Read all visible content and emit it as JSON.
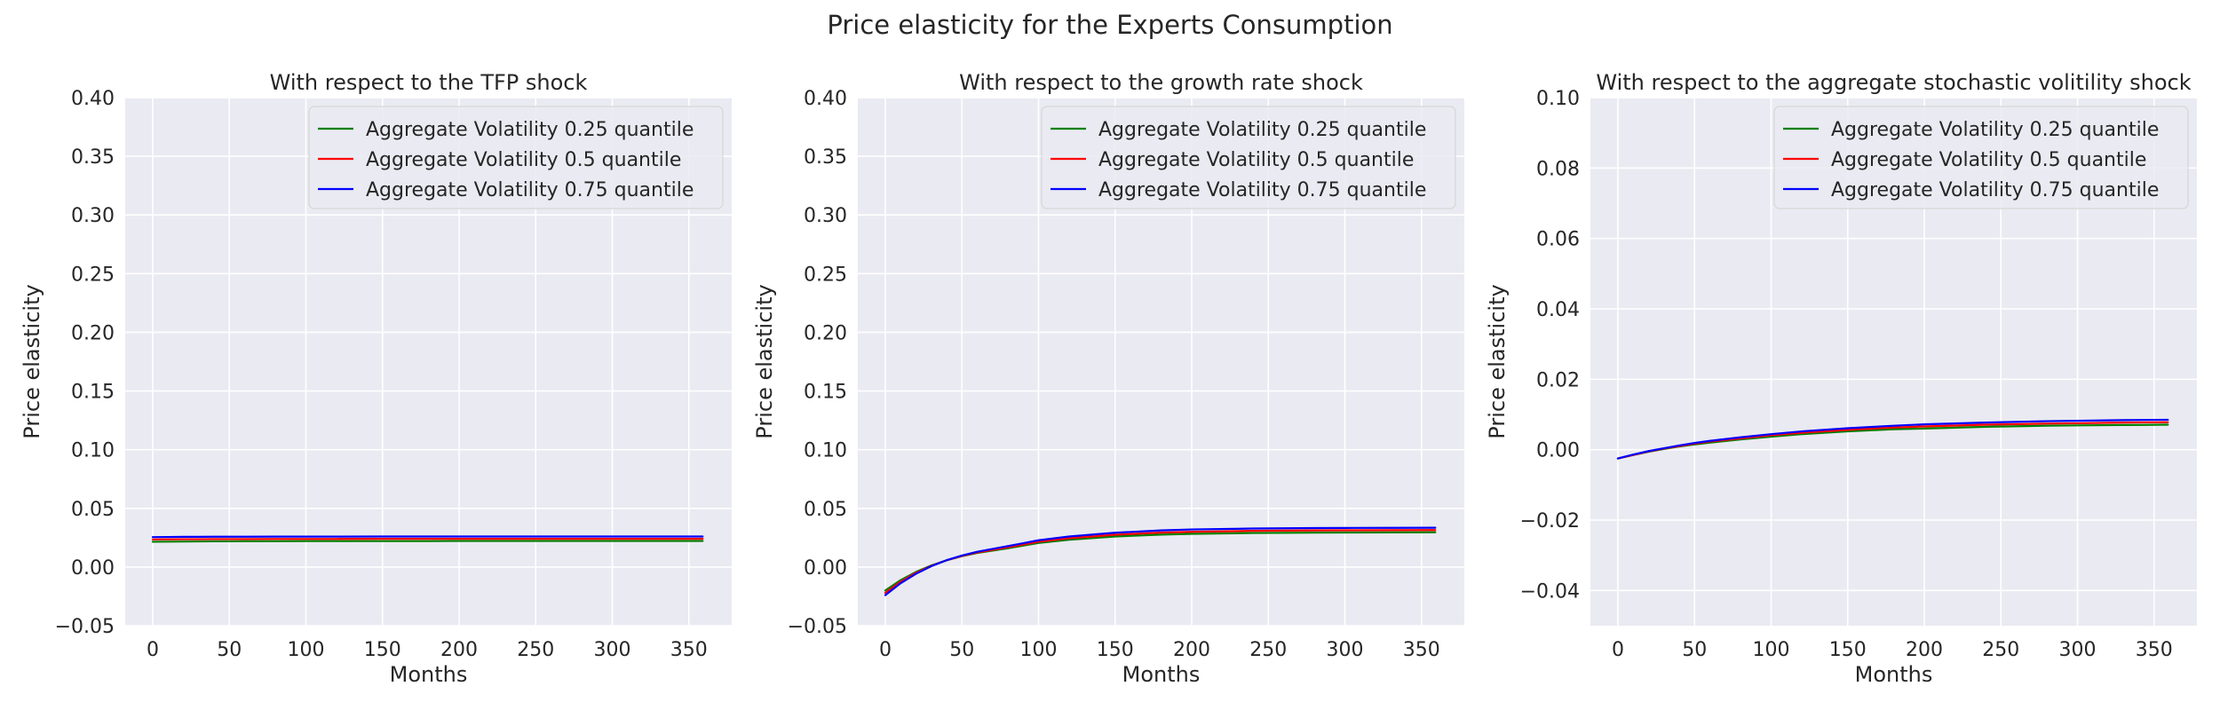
{
  "figure": {
    "suptitle": "Price elasticity for the Experts Consumption"
  },
  "chart_data": [
    {
      "type": "line",
      "title": "With respect to the TFP shock",
      "xlabel": "Months",
      "ylabel": "Price elasticity",
      "xlim": [
        -17.95,
        377.95
      ],
      "ylim": [
        -0.05,
        0.4
      ],
      "xticks": [
        0,
        50,
        100,
        150,
        200,
        250,
        300,
        350
      ],
      "xtick_labels": [
        "0",
        "50",
        "100",
        "150",
        "200",
        "250",
        "300",
        "350"
      ],
      "yticks": [
        -0.05,
        0.0,
        0.05,
        0.1,
        0.15,
        0.2,
        0.25,
        0.3,
        0.35,
        0.4
      ],
      "ytick_labels": [
        "−0.05",
        "0.00",
        "0.05",
        "0.10",
        "0.15",
        "0.20",
        "0.25",
        "0.30",
        "0.35",
        "0.40"
      ],
      "grid": true,
      "legend_position": "upper-right",
      "x": [
        0,
        10,
        20,
        30,
        40,
        50,
        60,
        80,
        100,
        120,
        150,
        180,
        200,
        240,
        280,
        300,
        330,
        359
      ],
      "series": [
        {
          "name": "Aggregate Volatility 0.25 quantile",
          "color": "#008000",
          "values": [
            0.0215,
            0.0216,
            0.0217,
            0.0218,
            0.0219,
            0.0219,
            0.022,
            0.022,
            0.0221,
            0.0221,
            0.0221,
            0.0221,
            0.0222,
            0.0222,
            0.0222,
            0.0222,
            0.0222,
            0.0222
          ]
        },
        {
          "name": "Aggregate Volatility 0.5 quantile",
          "color": "#ff0000",
          "values": [
            0.0235,
            0.0236,
            0.0237,
            0.0237,
            0.0238,
            0.0238,
            0.0238,
            0.0239,
            0.0239,
            0.0239,
            0.024,
            0.024,
            0.024,
            0.024,
            0.024,
            0.024,
            0.024,
            0.024
          ]
        },
        {
          "name": "Aggregate Volatility 0.75 quantile",
          "color": "#0000ff",
          "values": [
            0.0255,
            0.0256,
            0.0257,
            0.0257,
            0.0258,
            0.0258,
            0.0258,
            0.0259,
            0.0259,
            0.0259,
            0.026,
            0.026,
            0.026,
            0.026,
            0.026,
            0.026,
            0.026,
            0.026
          ]
        }
      ]
    },
    {
      "type": "line",
      "title": "With respect to the growth rate shock",
      "xlabel": "Months",
      "ylabel": "Price elasticity",
      "xlim": [
        -17.95,
        377.95
      ],
      "ylim": [
        -0.05,
        0.4
      ],
      "xticks": [
        0,
        50,
        100,
        150,
        200,
        250,
        300,
        350
      ],
      "xtick_labels": [
        "0",
        "50",
        "100",
        "150",
        "200",
        "250",
        "300",
        "350"
      ],
      "yticks": [
        -0.05,
        0.0,
        0.05,
        0.1,
        0.15,
        0.2,
        0.25,
        0.3,
        0.35,
        0.4
      ],
      "ytick_labels": [
        "−0.05",
        "0.00",
        "0.05",
        "0.10",
        "0.15",
        "0.20",
        "0.25",
        "0.30",
        "0.35",
        "0.40"
      ],
      "grid": true,
      "legend_position": "upper-right",
      "x": [
        0,
        10,
        20,
        30,
        40,
        50,
        60,
        80,
        100,
        120,
        150,
        180,
        200,
        240,
        280,
        300,
        330,
        359
      ],
      "series": [
        {
          "name": "Aggregate Volatility 0.25 quantile",
          "color": "#008000",
          "values": [
            -0.02,
            -0.0112,
            -0.0042,
            0.0013,
            0.0057,
            0.0092,
            0.012,
            0.016,
            0.0205,
            0.0232,
            0.026,
            0.0276,
            0.0283,
            0.029,
            0.0293,
            0.0294,
            0.0295,
            0.0296
          ]
        },
        {
          "name": "Aggregate Volatility 0.5 quantile",
          "color": "#ff0000",
          "values": [
            -0.022,
            -0.0125,
            -0.005,
            0.001,
            0.0057,
            0.0094,
            0.0124,
            0.0168,
            0.0215,
            0.0245,
            0.0275,
            0.0293,
            0.03,
            0.0308,
            0.0312,
            0.0313,
            0.0314,
            0.0315
          ]
        },
        {
          "name": "Aggregate Volatility 0.75 quantile",
          "color": "#0000ff",
          "values": [
            -0.024,
            -0.0138,
            -0.0058,
            0.0007,
            0.0058,
            0.0098,
            0.013,
            0.0178,
            0.0228,
            0.026,
            0.0292,
            0.0312,
            0.032,
            0.0328,
            0.0332,
            0.0333,
            0.0334,
            0.0335
          ]
        }
      ]
    },
    {
      "type": "line",
      "title": "With respect to the aggregate stochastic volitility shock",
      "xlabel": "Months",
      "ylabel": "Price elasticity",
      "xlim": [
        -17.95,
        377.95
      ],
      "ylim": [
        -0.05,
        0.1
      ],
      "xticks": [
        0,
        50,
        100,
        150,
        200,
        250,
        300,
        350
      ],
      "xtick_labels": [
        "0",
        "50",
        "100",
        "150",
        "200",
        "250",
        "300",
        "350"
      ],
      "yticks": [
        -0.04,
        -0.02,
        0.0,
        0.02,
        0.04,
        0.06,
        0.08,
        0.1
      ],
      "ytick_labels": [
        "−0.04",
        "−0.02",
        "0.00",
        "0.02",
        "0.04",
        "0.06",
        "0.08",
        "0.10"
      ],
      "grid": true,
      "legend_position": "upper-right",
      "x": [
        0,
        10,
        20,
        30,
        40,
        50,
        60,
        80,
        100,
        120,
        150,
        180,
        200,
        240,
        280,
        300,
        330,
        359
      ],
      "series": [
        {
          "name": "Aggregate Volatility 0.25 quantile",
          "color": "#008000",
          "values": [
            -0.0025,
            -0.0015,
            -0.0006,
            0.0002,
            0.0009,
            0.0015,
            0.002,
            0.0029,
            0.0037,
            0.0044,
            0.0052,
            0.0058,
            0.006,
            0.0065,
            0.0068,
            0.0069,
            0.007,
            0.0071
          ]
        },
        {
          "name": "Aggregate Volatility 0.5 quantile",
          "color": "#ff0000",
          "values": [
            -0.0025,
            -0.0015,
            -0.0005,
            0.0003,
            0.001,
            0.0017,
            0.0023,
            0.0032,
            0.0041,
            0.0048,
            0.0056,
            0.0063,
            0.0066,
            0.0071,
            0.0074,
            0.0075,
            0.0077,
            0.0078
          ]
        },
        {
          "name": "Aggregate Volatility 0.75 quantile",
          "color": "#0000ff",
          "values": [
            -0.0025,
            -0.0014,
            -0.0004,
            0.0004,
            0.0012,
            0.0019,
            0.0025,
            0.0035,
            0.0044,
            0.0052,
            0.0061,
            0.0068,
            0.0072,
            0.0077,
            0.0081,
            0.0082,
            0.0084,
            0.0085
          ]
        }
      ]
    }
  ]
}
